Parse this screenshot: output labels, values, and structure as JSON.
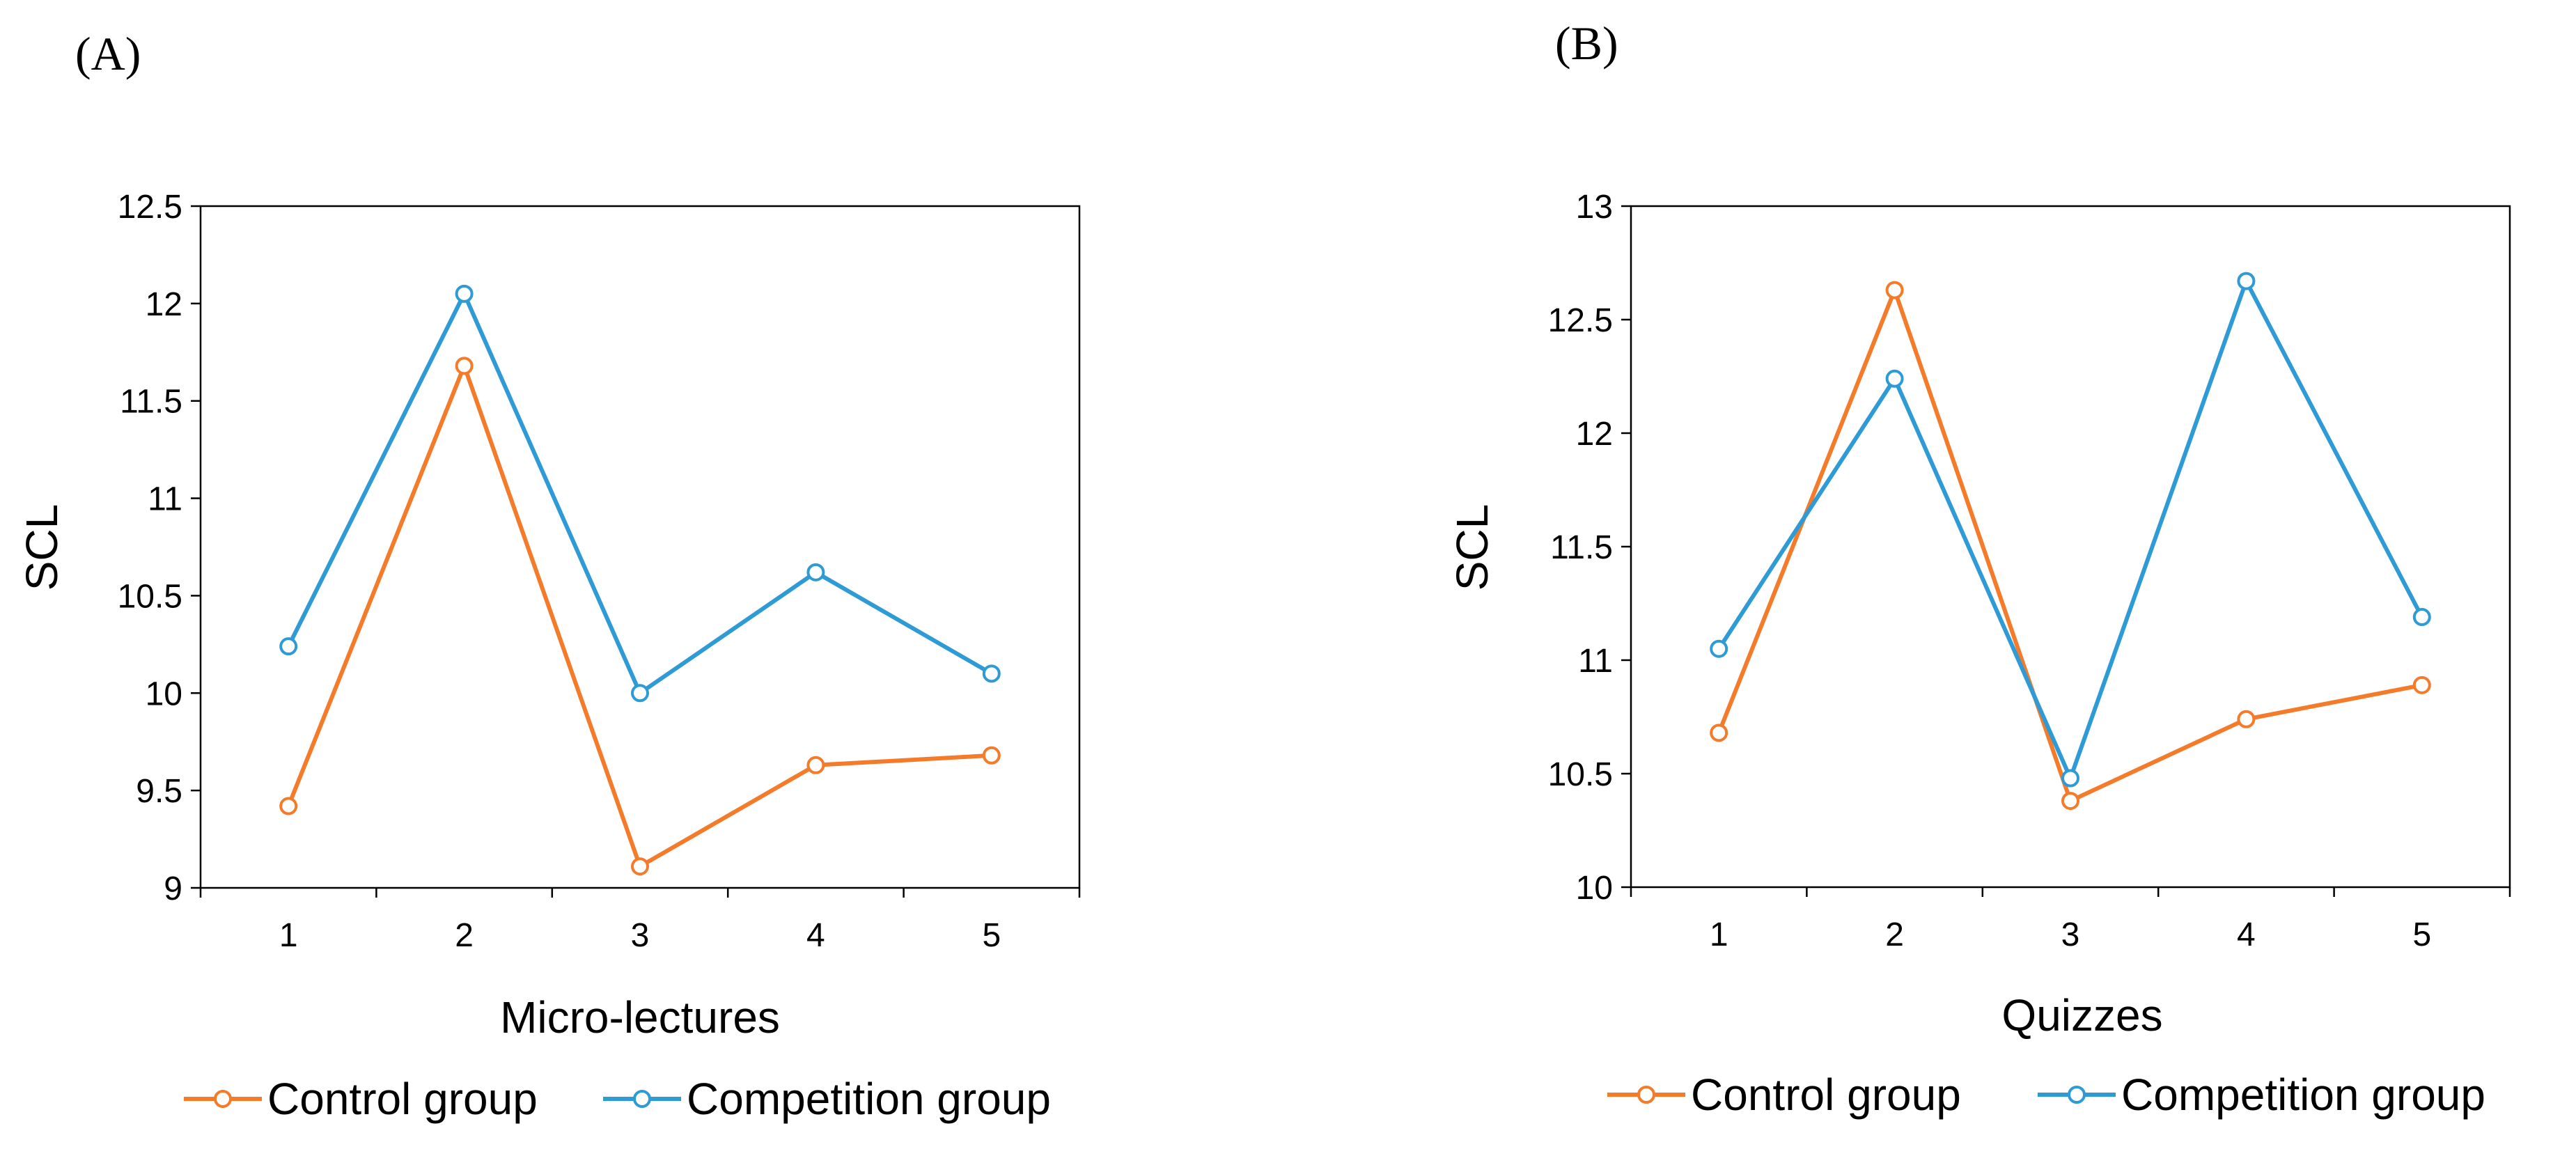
{
  "chart_data": [
    {
      "panel_label": "(A)",
      "type": "line",
      "categories": [
        "1",
        "2",
        "3",
        "4",
        "5"
      ],
      "x": [
        1,
        2,
        3,
        4,
        5
      ],
      "series": [
        {
          "name": "Control group",
          "color": "#F47B2A",
          "values": [
            9.42,
            11.68,
            9.11,
            9.63,
            9.68
          ]
        },
        {
          "name": "Competition group",
          "color": "#2E9BD6",
          "values": [
            10.24,
            12.05,
            10.0,
            10.62,
            10.1
          ]
        }
      ],
      "xlabel": "Micro-lectures",
      "ylabel": "SCL",
      "ylim": [
        9,
        12.5
      ],
      "yticks": [
        9,
        9.5,
        10,
        10.5,
        11,
        11.5,
        12,
        12.5
      ],
      "ytick_labels": [
        "9",
        "9.5",
        "10",
        "10.5",
        "11",
        "11.5",
        "12",
        "12.5"
      ],
      "grid": false,
      "legend": "bottom"
    },
    {
      "panel_label": "(B)",
      "type": "line",
      "categories": [
        "1",
        "2",
        "3",
        "4",
        "5"
      ],
      "x": [
        1,
        2,
        3,
        4,
        5
      ],
      "series": [
        {
          "name": "Control group",
          "color": "#F47B2A",
          "values": [
            10.68,
            12.63,
            10.38,
            10.74,
            10.89
          ]
        },
        {
          "name": "Competition group",
          "color": "#2E9BD6",
          "values": [
            11.05,
            12.24,
            10.48,
            12.67,
            11.19
          ]
        }
      ],
      "xlabel": "Quizzes",
      "ylabel": "SCL",
      "ylim": [
        10,
        13
      ],
      "yticks": [
        10,
        10.5,
        11,
        11.5,
        12,
        12.5,
        13
      ],
      "ytick_labels": [
        "10",
        "10.5",
        "11",
        "11.5",
        "12",
        "12.5",
        "13"
      ],
      "grid": false,
      "legend": "bottom"
    }
  ]
}
